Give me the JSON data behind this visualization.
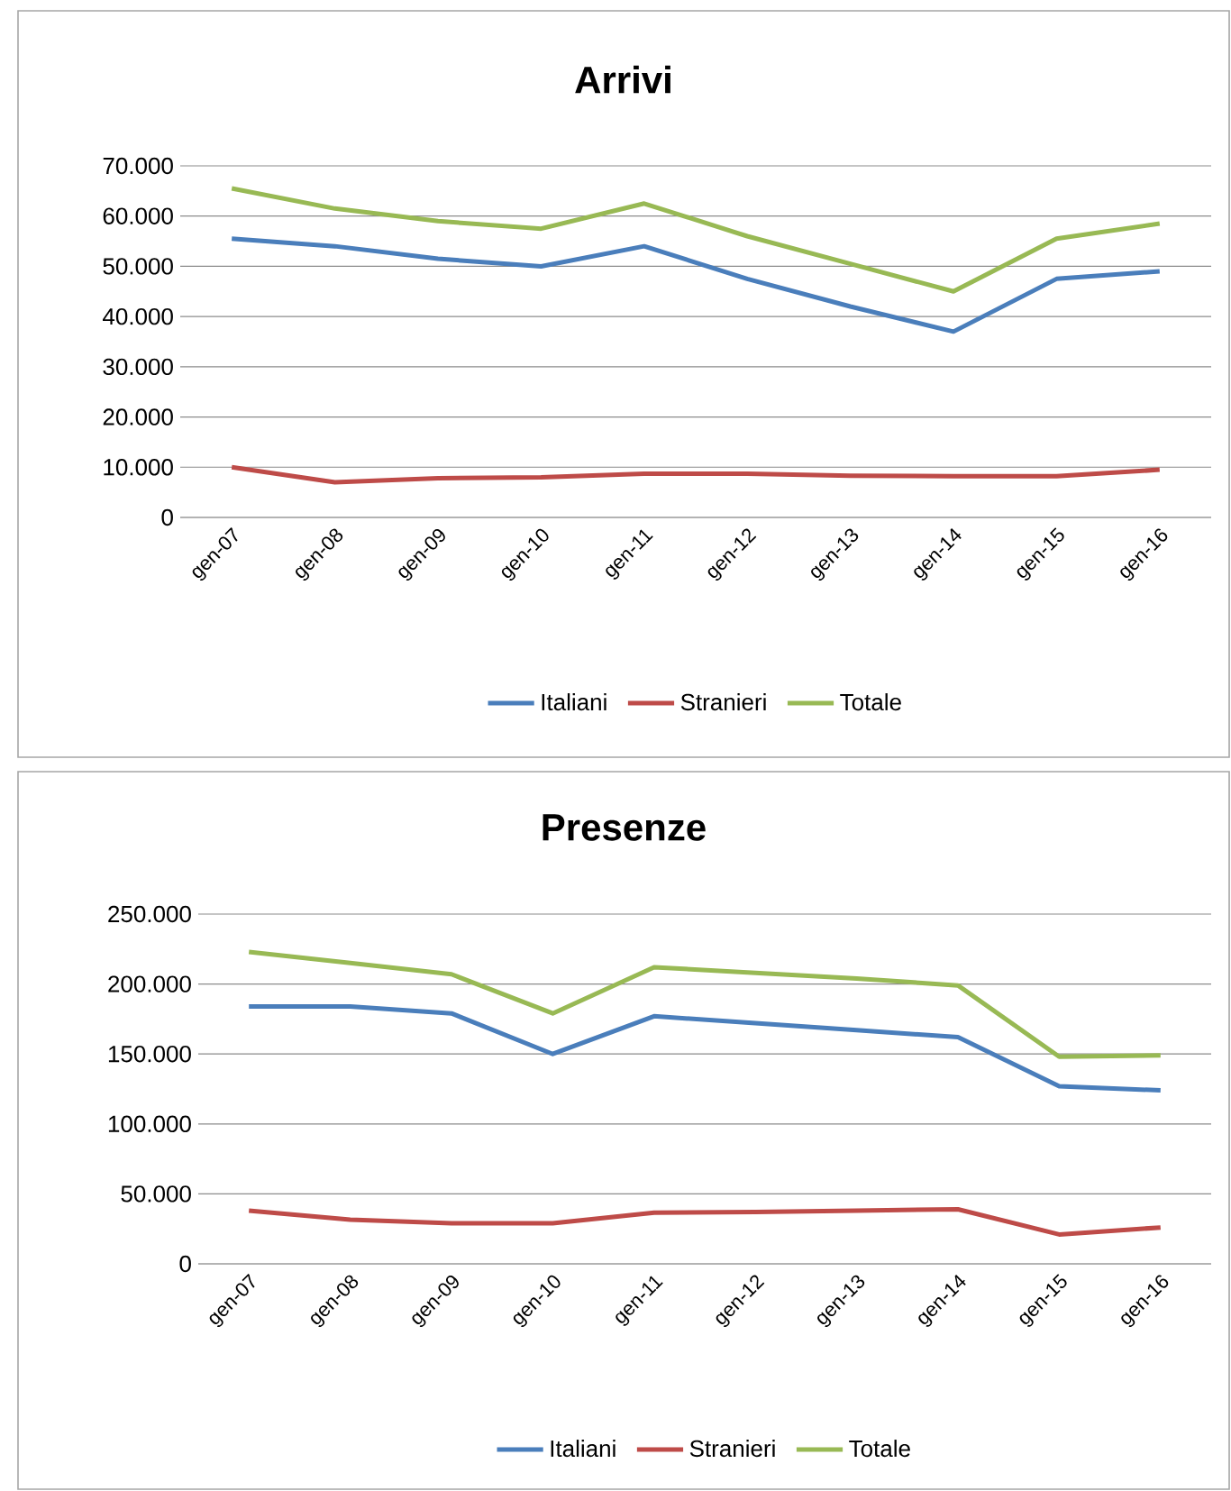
{
  "chart_data": [
    {
      "type": "line",
      "title": "Arrivi",
      "categories": [
        "gen-07",
        "gen-08",
        "gen-09",
        "gen-10",
        "gen-11",
        "gen-12",
        "gen-13",
        "gen-14",
        "gen-15",
        "gen-16"
      ],
      "series": [
        {
          "name": "Italiani",
          "color": "#4a7ebb",
          "values": [
            55500,
            54000,
            51500,
            50000,
            54000,
            47500,
            42000,
            37000,
            47500,
            49000
          ]
        },
        {
          "name": "Stranieri",
          "color": "#be4b48",
          "values": [
            10000,
            7000,
            7800,
            8000,
            8700,
            8700,
            8300,
            8200,
            8200,
            9500
          ]
        },
        {
          "name": "Totale",
          "color": "#98b954",
          "values": [
            65500,
            61500,
            59000,
            57500,
            62500,
            56000,
            50500,
            45000,
            55500,
            58500
          ]
        }
      ],
      "ylim": [
        0,
        70000
      ],
      "yticks": [
        0,
        {
          "value": 10000,
          "label": "10.000"
        },
        {
          "value": 20000,
          "label": "20.000"
        },
        {
          "value": 30000,
          "label": "30.000"
        },
        {
          "value": 40000,
          "label": "40.000"
        },
        {
          "value": 50000,
          "label": "50.000"
        },
        {
          "value": 60000,
          "label": "60.000"
        },
        {
          "value": 70000,
          "label": "70.000"
        }
      ],
      "grid": "y",
      "legend": "bottom"
    },
    {
      "type": "line",
      "title": "Presenze",
      "categories": [
        "gen-07",
        "gen-08",
        "gen-09",
        "gen-10",
        "gen-11",
        "gen-12",
        "gen-13",
        "gen-14",
        "gen-15",
        "gen-16"
      ],
      "series": [
        {
          "name": "Italiani",
          "color": "#4a7ebb",
          "values": [
            184000,
            184000,
            179000,
            150000,
            177000,
            172000,
            167000,
            162000,
            127000,
            124000
          ]
        },
        {
          "name": "Stranieri",
          "color": "#be4b48",
          "values": [
            38000,
            31500,
            29000,
            29000,
            36500,
            37000,
            38000,
            39000,
            21000,
            26000
          ]
        },
        {
          "name": "Totale",
          "color": "#98b954",
          "values": [
            223000,
            215000,
            207000,
            179000,
            212000,
            208000,
            204000,
            199000,
            148000,
            149000
          ]
        }
      ],
      "ylim": [
        0,
        250000
      ],
      "yticks": [
        0,
        {
          "value": 50000,
          "label": "50.000"
        },
        {
          "value": 100000,
          "label": "100.000"
        },
        {
          "value": 150000,
          "label": "150.000"
        },
        {
          "value": 200000,
          "label": "200.000"
        },
        {
          "value": 250000,
          "label": "250.000"
        }
      ],
      "grid": "y",
      "legend": "bottom"
    }
  ]
}
